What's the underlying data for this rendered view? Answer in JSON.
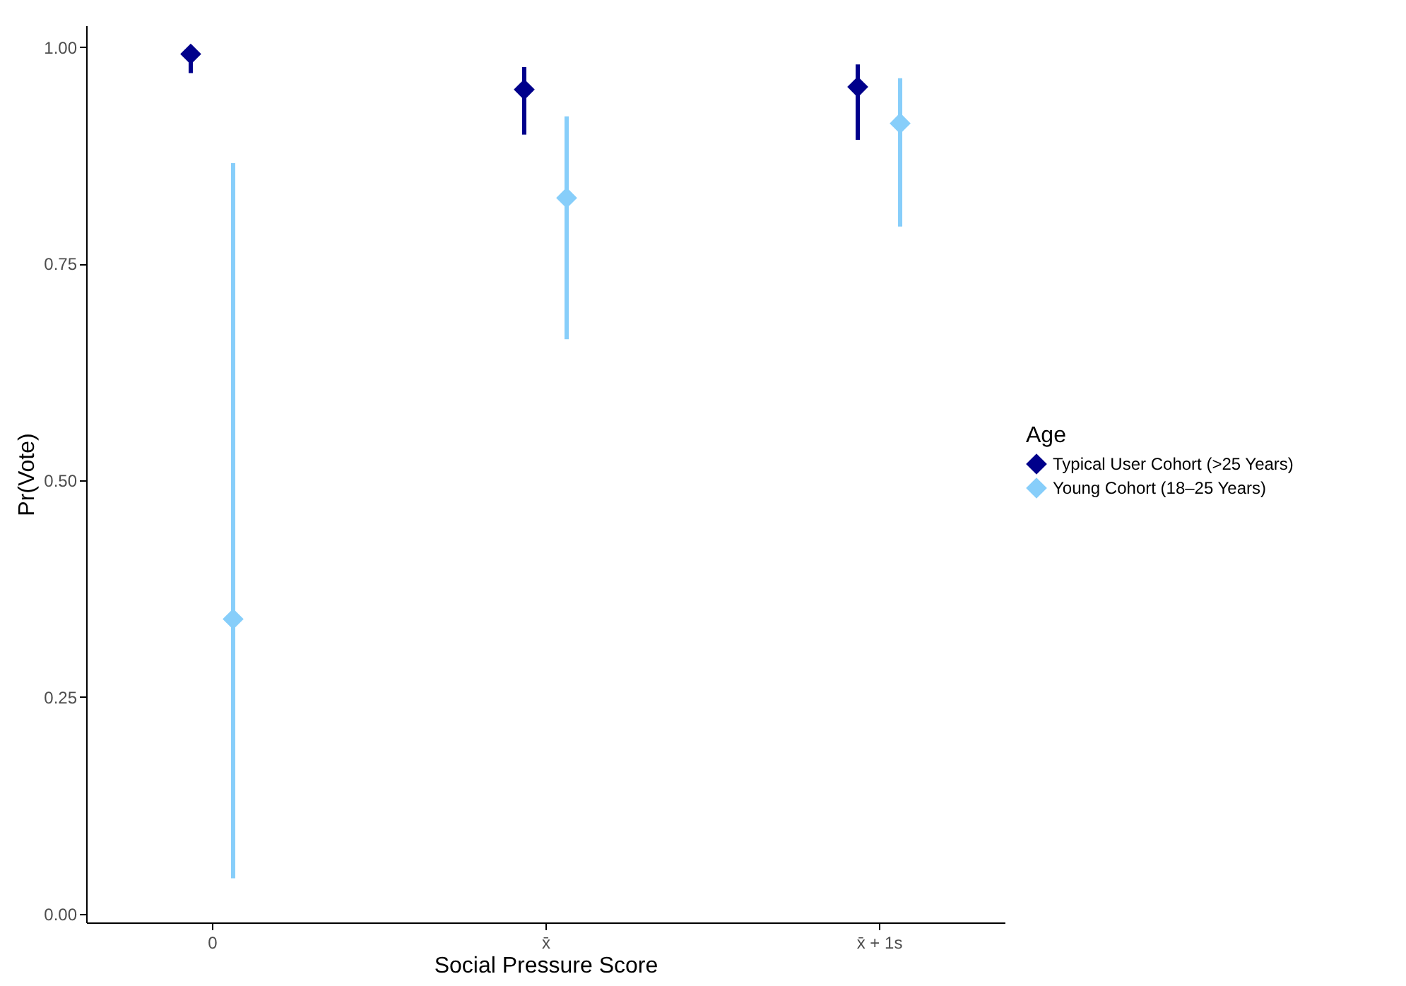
{
  "chart_data": {
    "type": "scatter",
    "xlabel": "Social Pressure Score",
    "ylabel": "Pr(Vote)",
    "legend_title": "Age",
    "categories": [
      "0",
      "x̄",
      "x̄ + 1s"
    ],
    "series": [
      {
        "name": "Typical User Cohort (>25 Years)",
        "color": "#00008b",
        "values": [
          0.992,
          0.951,
          0.954
        ],
        "errors": [
          [
            0.97,
            1.0
          ],
          [
            0.899,
            0.977
          ],
          [
            0.893,
            0.98
          ]
        ]
      },
      {
        "name": "Young Cohort (18–25 Years)",
        "color": "#87cefa",
        "values": [
          0.34,
          0.826,
          0.912
        ],
        "errors": [
          [
            0.041,
            0.866
          ],
          [
            0.663,
            0.92
          ],
          [
            0.793,
            0.964
          ]
        ]
      }
    ],
    "ylim": [
      -0.01,
      1.025
    ],
    "yticks": [
      {
        "value": 0,
        "label": "0.00"
      },
      {
        "value": 0.25,
        "label": "0.25"
      },
      {
        "value": 0.5,
        "label": "0.50"
      },
      {
        "value": 0.75,
        "label": "0.75"
      },
      {
        "value": 1,
        "label": "1.00"
      }
    ],
    "grid": false,
    "legend": "right",
    "marker": "diamond"
  }
}
